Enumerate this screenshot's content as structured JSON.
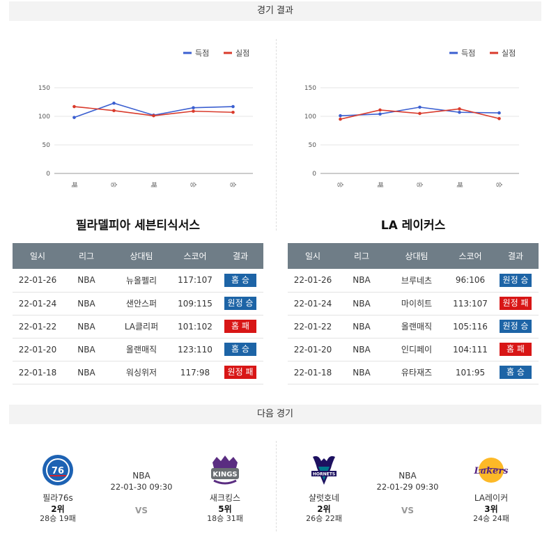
{
  "sections": {
    "results_title": "경기 결과",
    "next_title": "다음 경기"
  },
  "legend": {
    "scored": "득점",
    "conceded": "실점"
  },
  "colors": {
    "scored": "#3b5fd0",
    "conceded": "#d93a2b",
    "win": "#1d64a6",
    "loss": "#d81616",
    "header": "#6f7d87"
  },
  "table_headers": [
    "일시",
    "리그",
    "상대팀",
    "스코어",
    "결과"
  ],
  "chart_data": [
    {
      "type": "line",
      "categories": [
        "패",
        "승",
        "패",
        "승",
        "승"
      ],
      "ylim": [
        0,
        150
      ],
      "yticks": [
        0,
        50,
        100,
        150
      ],
      "series": [
        {
          "name": "득점",
          "values": [
            98,
            123,
            102,
            115,
            117
          ]
        },
        {
          "name": "실점",
          "values": [
            117,
            110,
            101,
            109,
            107
          ]
        }
      ],
      "legend_position": "top-right",
      "grid": true
    },
    {
      "type": "line",
      "categories": [
        "승",
        "패",
        "승",
        "패",
        "승"
      ],
      "ylim": [
        0,
        150
      ],
      "yticks": [
        0,
        50,
        100,
        150
      ],
      "series": [
        {
          "name": "득점",
          "values": [
            101,
            104,
            116,
            107,
            106
          ]
        },
        {
          "name": "실점",
          "values": [
            95,
            111,
            105,
            113,
            96
          ]
        }
      ],
      "legend_position": "top-right",
      "grid": true
    }
  ],
  "left_team": {
    "title": "필라델피아 세븐티식서스",
    "rows": [
      {
        "date": "22-01-26",
        "league": "NBA",
        "opponent": "뉴올펠리",
        "score": "117:107",
        "result": "홈 승",
        "outcome": "win"
      },
      {
        "date": "22-01-24",
        "league": "NBA",
        "opponent": "샌안스퍼",
        "score": "109:115",
        "result": "원정 승",
        "outcome": "win"
      },
      {
        "date": "22-01-22",
        "league": "NBA",
        "opponent": "LA클리퍼",
        "score": "101:102",
        "result": "홈 패",
        "outcome": "loss"
      },
      {
        "date": "22-01-20",
        "league": "NBA",
        "opponent": "올랜매직",
        "score": "123:110",
        "result": "홈 승",
        "outcome": "win"
      },
      {
        "date": "22-01-18",
        "league": "NBA",
        "opponent": "워싱위저",
        "score": "117:98",
        "result": "원정 패",
        "outcome": "loss"
      }
    ]
  },
  "right_team": {
    "title": "LA 레이커스",
    "rows": [
      {
        "date": "22-01-26",
        "league": "NBA",
        "opponent": "브루네츠",
        "score": "96:106",
        "result": "원정 승",
        "outcome": "win"
      },
      {
        "date": "22-01-24",
        "league": "NBA",
        "opponent": "마이히트",
        "score": "113:107",
        "result": "원정 패",
        "outcome": "loss"
      },
      {
        "date": "22-01-22",
        "league": "NBA",
        "opponent": "올랜매직",
        "score": "105:116",
        "result": "원정 승",
        "outcome": "win"
      },
      {
        "date": "22-01-20",
        "league": "NBA",
        "opponent": "인디페이",
        "score": "104:111",
        "result": "홈 패",
        "outcome": "loss"
      },
      {
        "date": "22-01-18",
        "league": "NBA",
        "opponent": "유타재즈",
        "score": "101:95",
        "result": "홈 승",
        "outcome": "win"
      }
    ]
  },
  "next_games": [
    {
      "league": "NBA",
      "datetime": "22-01-30 09:30",
      "vs": "VS",
      "home": {
        "name": "필라76s",
        "rank": "2위",
        "record": "28승 19패",
        "logo": "76ers-logo"
      },
      "away": {
        "name": "새크킹스",
        "rank": "5위",
        "record": "18승 31패",
        "logo": "kings-logo"
      }
    },
    {
      "league": "NBA",
      "datetime": "22-01-29 09:30",
      "vs": "VS",
      "home": {
        "name": "샬럿호네",
        "rank": "2위",
        "record": "26승 22패",
        "logo": "hornets-logo"
      },
      "away": {
        "name": "LA레이커",
        "rank": "3위",
        "record": "24승 24패",
        "logo": "lakers-logo"
      }
    }
  ]
}
